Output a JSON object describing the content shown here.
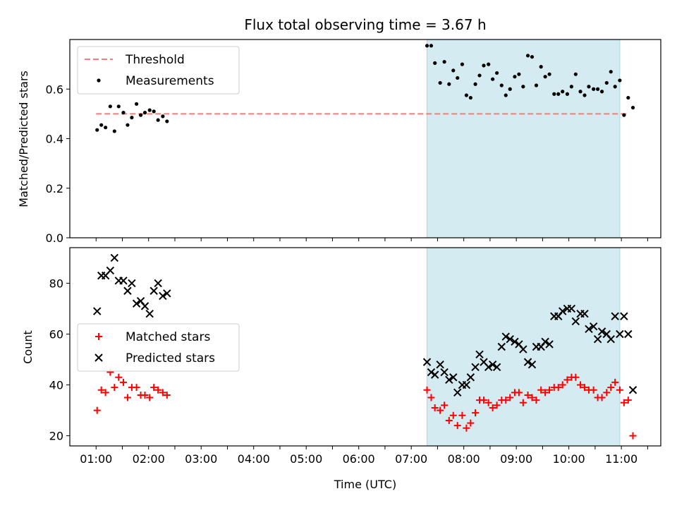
{
  "chart_data": {
    "title": "Flux total observing time = 3.67 h",
    "xlabel": "Time (UTC)",
    "x_ticks": [
      "01:00",
      "02:00",
      "03:00",
      "04:00",
      "05:00",
      "06:00",
      "07:00",
      "08:00",
      "09:00",
      "10:00",
      "11:00"
    ],
    "shaded_region": {
      "x_start": 7.3,
      "x_end": 10.97,
      "color": "#d3ebf1"
    },
    "panels": [
      {
        "type": "scatter",
        "ylabel": "Matched/Predicted stars",
        "ylim": [
          0,
          0.8
        ],
        "y_ticks": [
          "0.0",
          "0.2",
          "0.4",
          "0.6"
        ],
        "legend": {
          "placement": "upper-left",
          "entries": [
            "Threshold",
            "Measurements"
          ]
        },
        "threshold": {
          "name": "Threshold",
          "y": 0.5,
          "x_start": 1.0,
          "x_end": 11.1,
          "color": "#f47c7c",
          "style": "dashed"
        },
        "series": [
          {
            "name": "Measurements",
            "marker": "dot",
            "color": "#000000",
            "x": [
              1.02,
              1.1,
              1.18,
              1.27,
              1.35,
              1.43,
              1.52,
              1.6,
              1.68,
              1.77,
              1.85,
              1.93,
              2.02,
              2.1,
              2.18,
              2.27,
              2.35,
              7.3,
              7.38,
              7.45,
              7.55,
              7.63,
              7.72,
              7.8,
              7.88,
              7.97,
              8.05,
              8.13,
              8.22,
              8.3,
              8.38,
              8.47,
              8.55,
              8.63,
              8.72,
              8.8,
              8.88,
              8.97,
              9.05,
              9.13,
              9.22,
              9.3,
              9.38,
              9.47,
              9.55,
              9.63,
              9.72,
              9.8,
              9.88,
              9.97,
              10.05,
              10.13,
              10.22,
              10.3,
              10.38,
              10.47,
              10.55,
              10.63,
              10.72,
              10.8,
              10.88,
              10.97,
              11.05,
              11.13,
              11.22
            ],
            "y": [
              0.435,
              0.455,
              0.445,
              0.53,
              0.43,
              0.53,
              0.505,
              0.455,
              0.485,
              0.54,
              0.495,
              0.505,
              0.515,
              0.51,
              0.475,
              0.49,
              0.47,
              0.775,
              0.775,
              0.705,
              0.625,
              0.71,
              0.62,
              0.675,
              0.645,
              0.7,
              0.575,
              0.565,
              0.62,
              0.655,
              0.695,
              0.7,
              0.64,
              0.665,
              0.615,
              0.575,
              0.6,
              0.65,
              0.66,
              0.61,
              0.735,
              0.73,
              0.615,
              0.69,
              0.65,
              0.66,
              0.58,
              0.58,
              0.59,
              0.58,
              0.61,
              0.66,
              0.59,
              0.575,
              0.61,
              0.6,
              0.6,
              0.59,
              0.625,
              0.67,
              0.61,
              0.635,
              0.495,
              0.565,
              0.525
            ]
          }
        ]
      },
      {
        "type": "scatter",
        "ylabel": "Count",
        "ylim": [
          16,
          94
        ],
        "y_ticks": [
          "20",
          "40",
          "60",
          "80"
        ],
        "legend": {
          "placement": "center-left",
          "entries": [
            "Matched stars",
            "Predicted stars"
          ]
        },
        "series": [
          {
            "name": "Matched stars",
            "marker": "plus",
            "color": "#ff0000",
            "x": [
              1.02,
              1.1,
              1.18,
              1.27,
              1.35,
              1.43,
              1.52,
              1.6,
              1.68,
              1.77,
              1.85,
              1.93,
              2.02,
              2.1,
              2.18,
              2.27,
              2.35,
              7.3,
              7.38,
              7.45,
              7.55,
              7.63,
              7.72,
              7.8,
              7.88,
              7.97,
              8.05,
              8.13,
              8.22,
              8.3,
              8.38,
              8.47,
              8.55,
              8.63,
              8.72,
              8.8,
              8.88,
              8.97,
              9.05,
              9.13,
              9.22,
              9.3,
              9.38,
              9.47,
              9.55,
              9.63,
              9.72,
              9.8,
              9.88,
              9.97,
              10.05,
              10.13,
              10.22,
              10.3,
              10.38,
              10.47,
              10.55,
              10.63,
              10.72,
              10.8,
              10.88,
              10.97,
              11.05,
              11.13,
              11.22
            ],
            "y": [
              30,
              38,
              37,
              45,
              39,
              43,
              41,
              35,
              39,
              39,
              36,
              36,
              35,
              39,
              38,
              37,
              36,
              38,
              35,
              31,
              30,
              32,
              26,
              28,
              24,
              28,
              23,
              25,
              29,
              34,
              34,
              33,
              31,
              32,
              34,
              34,
              35,
              37,
              37,
              33,
              36,
              35,
              34,
              38,
              37,
              38,
              39,
              39,
              40,
              42,
              43,
              43,
              40,
              39,
              38,
              38,
              35,
              35,
              37,
              39,
              41,
              38,
              33,
              34,
              20
            ]
          },
          {
            "name": "Predicted stars",
            "marker": "cross",
            "color": "#000000",
            "x": [
              1.02,
              1.1,
              1.18,
              1.27,
              1.35,
              1.43,
              1.52,
              1.6,
              1.68,
              1.77,
              1.85,
              1.93,
              2.02,
              2.1,
              2.18,
              2.27,
              2.35,
              7.3,
              7.38,
              7.45,
              7.55,
              7.63,
              7.72,
              7.8,
              7.88,
              7.97,
              8.05,
              8.13,
              8.22,
              8.3,
              8.38,
              8.47,
              8.55,
              8.63,
              8.72,
              8.8,
              8.88,
              8.97,
              9.05,
              9.13,
              9.22,
              9.3,
              9.38,
              9.47,
              9.55,
              9.63,
              9.72,
              9.8,
              9.88,
              9.97,
              10.05,
              10.13,
              10.22,
              10.3,
              10.38,
              10.47,
              10.55,
              10.63,
              10.72,
              10.8,
              10.88,
              10.97,
              11.05,
              11.13,
              11.22
            ],
            "y": [
              69,
              83,
              83,
              85,
              90,
              81,
              81,
              77,
              80,
              72,
              73,
              71,
              68,
              77,
              80,
              75,
              76,
              49,
              45,
              44,
              48,
              45,
              42,
              43,
              37,
              40,
              40,
              43,
              47,
              52,
              49,
              47,
              48,
              47,
              55,
              59,
              58,
              57,
              56,
              54,
              49,
              48,
              55,
              55,
              57,
              56,
              67,
              67,
              69,
              70,
              70,
              65,
              68,
              68,
              62,
              63,
              58,
              61,
              60,
              58,
              67,
              60,
              67,
              60,
              38
            ]
          }
        ]
      }
    ]
  }
}
